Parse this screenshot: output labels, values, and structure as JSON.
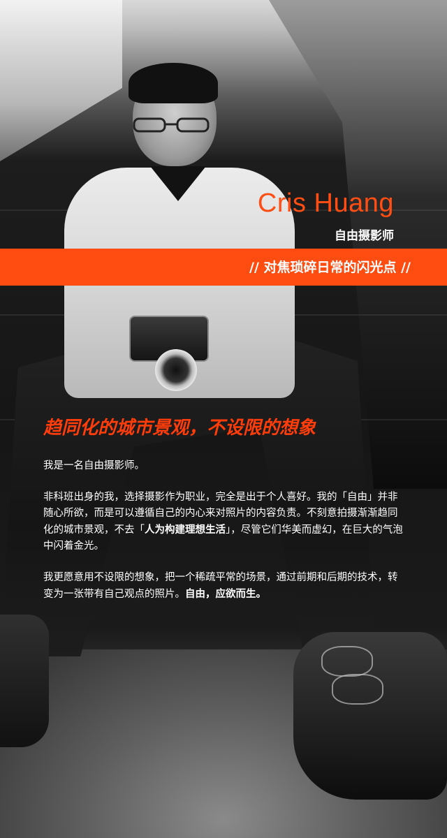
{
  "profile": {
    "name": "Cris Huang",
    "role": "自由摄影师",
    "tagline": "// 对焦琐碎日常的闪光点 //"
  },
  "article": {
    "headline": "趋同化的城市景观，不设限的想象",
    "p1": "我是一名自由摄影师。",
    "p2": {
      "a": "非科班出身的我，选择摄影作为职业，完全是出于个人喜好。我的「自由」并非随心所欲，而是可以遵循自己的内心来对照片的内容负责。不刻意拍摄渐渐趋同化的城市景观，不去「",
      "b": "人为构建理想生活",
      "c": "」，尽管它们华美而虚幻，在巨大的气泡中闪着金光。"
    },
    "p3": {
      "a": "我更愿意用不设限的想象，把一个稀疏平常的场景，通过前期和后期的技术，转变为一张带有自己观点的照片。",
      "b": "自由，应欲而生。"
    }
  },
  "colors": {
    "accent": "#ff4c10",
    "text": "#ffffff"
  }
}
